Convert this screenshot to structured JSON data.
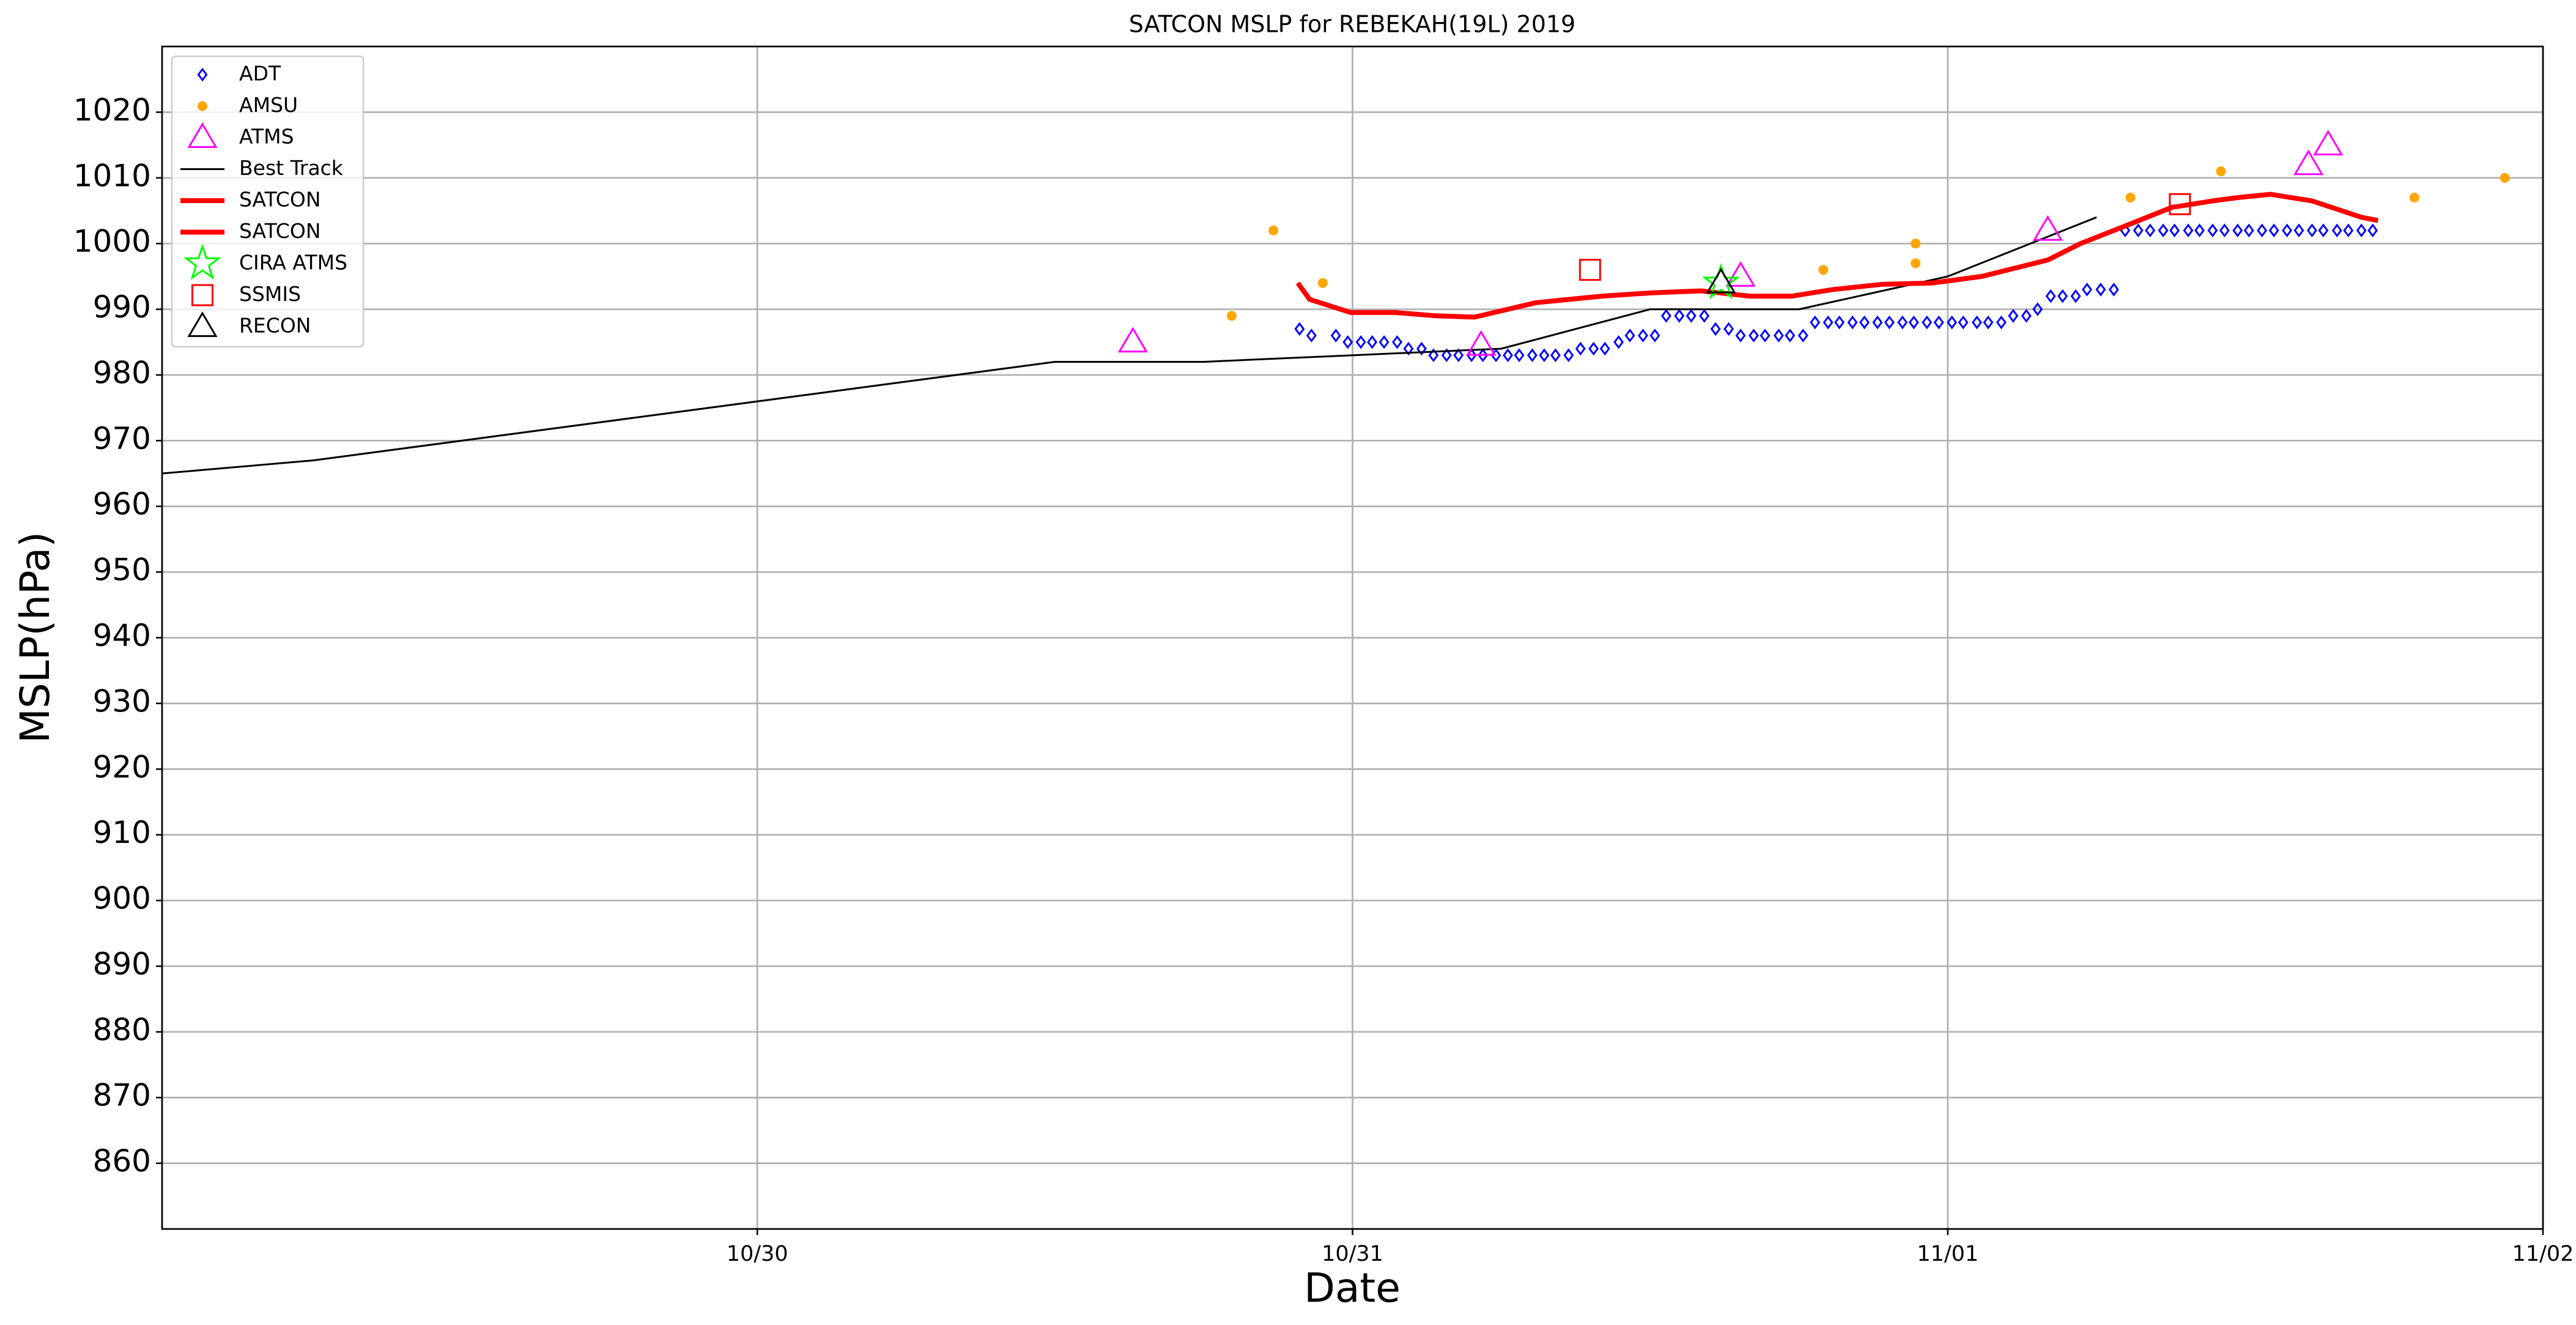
{
  "chart_data": {
    "type": "scatter",
    "title": "SATCON MSLP for REBEKAH(19L) 2019",
    "x_label": "Date",
    "y_label": "MSLP(hPa)",
    "xlim": [
      0,
      4
    ],
    "xticks": [
      {
        "value": 1,
        "label": "10/30"
      },
      {
        "value": 2,
        "label": "10/31"
      },
      {
        "value": 3,
        "label": "11/01"
      },
      {
        "value": 4,
        "label": "11/02"
      }
    ],
    "ylim": [
      850,
      1030
    ],
    "yticks": [
      860,
      870,
      880,
      890,
      900,
      910,
      920,
      930,
      940,
      950,
      960,
      970,
      980,
      990,
      1000,
      1010,
      1020
    ],
    "grid": true,
    "legend": "upper left",
    "series": [
      {
        "name": "ADT",
        "color": "#0000ff",
        "marker": "diamond",
        "x": [
          1.911,
          1.931,
          1.972,
          1.992,
          2.014,
          2.033,
          2.053,
          2.075,
          2.094,
          2.116,
          2.136,
          2.158,
          2.178,
          2.2,
          2.219,
          2.241,
          2.261,
          2.28,
          2.302,
          2.322,
          2.341,
          2.363,
          2.383,
          2.405,
          2.424,
          2.447,
          2.466,
          2.488,
          2.508,
          2.527,
          2.549,
          2.569,
          2.591,
          2.61,
          2.632,
          2.652,
          2.674,
          2.693,
          2.716,
          2.735,
          2.757,
          2.777,
          2.799,
          2.818,
          2.84,
          2.86,
          2.882,
          2.902,
          2.924,
          2.943,
          2.965,
          2.985,
          3.007,
          3.026,
          3.049,
          3.068,
          3.09,
          3.11,
          3.132,
          3.151,
          3.173,
          3.193,
          3.215,
          3.234,
          3.257,
          3.279,
          3.298,
          3.32,
          3.34,
          3.362,
          3.381,
          3.404,
          3.423,
          3.445,
          3.465,
          3.487,
          3.506,
          3.528,
          3.548,
          3.57,
          3.59,
          3.612,
          3.631,
          3.654,
          3.673,
          3.695,
          3.714
        ],
        "values": [
          987,
          986,
          986,
          985,
          985,
          985,
          985,
          985,
          984,
          984,
          983,
          983,
          983,
          983,
          983,
          983,
          983,
          983,
          983,
          983,
          983,
          983,
          984,
          984,
          984,
          985,
          986,
          986,
          986,
          989,
          989,
          989,
          989,
          987,
          987,
          986,
          986,
          986,
          986,
          986,
          986,
          988,
          988,
          988,
          988,
          988,
          988,
          988,
          988,
          988,
          988,
          988,
          988,
          988,
          988,
          988,
          988,
          989,
          989,
          990,
          992,
          992,
          992,
          993,
          993,
          993,
          1002,
          1002,
          1002,
          1002,
          1002,
          1002,
          1002,
          1002,
          1002,
          1002,
          1002,
          1002,
          1002,
          1002,
          1002,
          1002,
          1002,
          1002,
          1002,
          1002,
          1002
        ]
      },
      {
        "name": "AMSU",
        "color": "#ffa500",
        "marker": "circle",
        "x": [
          1.797,
          1.867,
          1.95,
          2.791,
          2.946,
          2.946,
          3.307,
          3.459,
          3.784,
          3.936
        ],
        "values": [
          989,
          1002,
          994,
          996,
          997,
          1000,
          1007,
          1011,
          1007,
          1010
        ]
      },
      {
        "name": "ATMS",
        "color": "#ff00ff",
        "marker": "triangle",
        "x": [
          1.631,
          2.216,
          2.652,
          3.168,
          3.606,
          3.639
        ],
        "values": [
          985,
          984.5,
          995,
          1002,
          1012,
          1015
        ]
      },
      {
        "name": "Best Track",
        "color": "#000000",
        "marker": "line",
        "x": [
          0,
          0.255,
          1.5,
          1.75,
          2.25,
          2.5,
          2.75,
          3.0,
          3.25
        ],
        "values": [
          965,
          967,
          982,
          982,
          984,
          990,
          990,
          995,
          1004
        ]
      },
      {
        "name": "SATCON",
        "color": "#ff0000",
        "marker": "thick-line",
        "x": [
          1.908,
          1.928,
          1.997,
          2.072,
          2.141,
          2.205,
          2.308,
          2.419,
          2.502,
          2.585,
          2.668,
          2.738,
          2.807,
          2.89,
          2.974,
          3.057,
          3.168,
          3.223,
          3.307,
          3.376,
          3.445,
          3.487,
          3.542,
          3.612,
          3.695,
          3.723
        ],
        "values": [
          994,
          991.5,
          989.5,
          989.5,
          989,
          988.8,
          991,
          992,
          992.5,
          992.8,
          992,
          992,
          993,
          993.8,
          994,
          995,
          997.5,
          1000,
          1003,
          1005.5,
          1006.5,
          1007,
          1007.5,
          1006.5,
          1004,
          1003.5
        ]
      },
      {
        "name": "SATCON",
        "color": "#ff0000",
        "marker": "thick-line",
        "x": [],
        "values": []
      },
      {
        "name": "CIRA ATMS",
        "color": "#00ff00",
        "marker": "star",
        "x": [
          2.619
        ],
        "values": [
          994
        ]
      },
      {
        "name": "SSMIS",
        "color": "#ff0000",
        "marker": "square",
        "x": [
          2.399,
          3.39
        ],
        "values": [
          996,
          1006
        ]
      },
      {
        "name": "RECON",
        "color": "#000000",
        "marker": "triangle",
        "x": [
          2.619
        ],
        "values": [
          994
        ]
      }
    ]
  }
}
